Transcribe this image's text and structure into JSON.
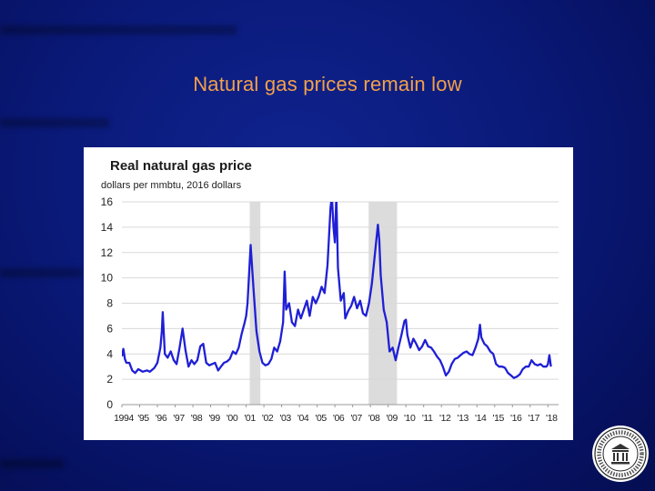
{
  "slide": {
    "title": "Natural gas prices remain low",
    "seal_icon": "fed-reserve-seal-icon"
  },
  "chart_data": {
    "type": "line",
    "title": "Real natural gas price",
    "subtitle": "dollars per mmbtu, 2016 dollars",
    "xlabel": "",
    "ylabel": "",
    "ylim": [
      0,
      16
    ],
    "yticks": [
      0,
      2,
      4,
      6,
      8,
      10,
      12,
      14,
      16
    ],
    "xlim": [
      1994,
      2018.6
    ],
    "xtick_labels": [
      "1994",
      "'95",
      "'96",
      "'97",
      "'98",
      "'99",
      "'00",
      "'01",
      "'02",
      "'03",
      "'04",
      "'05",
      "'06",
      "'07",
      "'08",
      "'09",
      "'10",
      "'11",
      "'12",
      "'13",
      "'14",
      "'15",
      "'16",
      "'17",
      "'18"
    ],
    "xtick_years": [
      1994,
      1995,
      1996,
      1997,
      1998,
      1999,
      2000,
      2001,
      2002,
      2003,
      2004,
      2005,
      2006,
      2007,
      2008,
      2009,
      2010,
      2011,
      2012,
      2013,
      2014,
      2015,
      2016,
      2017,
      2018
    ],
    "grid": true,
    "line_color": "#1f1fd6",
    "shading_color": "#dcdcdc",
    "recessions": [
      [
        2001.2,
        2001.8
      ],
      [
        2007.9,
        2009.5
      ]
    ],
    "series": [
      {
        "name": "Real natural gas price",
        "x": [
          1994.0,
          1994.08,
          1994.17,
          1994.25,
          1994.42,
          1994.58,
          1994.75,
          1994.92,
          1995.17,
          1995.42,
          1995.58,
          1995.83,
          1996.0,
          1996.17,
          1996.25,
          1996.3,
          1996.42,
          1996.58,
          1996.75,
          1996.92,
          1997.08,
          1997.25,
          1997.42,
          1997.58,
          1997.75,
          1997.92,
          1998.08,
          1998.25,
          1998.42,
          1998.58,
          1998.75,
          1998.92,
          1999.08,
          1999.25,
          1999.42,
          1999.58,
          1999.75,
          1999.92,
          2000.08,
          2000.25,
          2000.42,
          2000.58,
          2000.75,
          2000.92,
          2001.0,
          2001.08,
          2001.25,
          2001.42,
          2001.58,
          2001.75,
          2001.92,
          2002.08,
          2002.25,
          2002.42,
          2002.58,
          2002.75,
          2002.92,
          2003.08,
          2003.17,
          2003.25,
          2003.42,
          2003.58,
          2003.75,
          2003.92,
          2004.08,
          2004.25,
          2004.42,
          2004.58,
          2004.75,
          2004.92,
          2005.08,
          2005.25,
          2005.42,
          2005.58,
          2005.75,
          2005.83,
          2005.92,
          2006.0,
          2006.08,
          2006.17,
          2006.33,
          2006.5,
          2006.58,
          2006.75,
          2006.92,
          2007.08,
          2007.25,
          2007.42,
          2007.58,
          2007.75,
          2007.92,
          2008.08,
          2008.25,
          2008.42,
          2008.5,
          2008.58,
          2008.75,
          2008.92,
          2009.08,
          2009.25,
          2009.42,
          2009.58,
          2009.75,
          2009.92,
          2010.0,
          2010.08,
          2010.25,
          2010.42,
          2010.58,
          2010.75,
          2010.92,
          2011.08,
          2011.25,
          2011.42,
          2011.58,
          2011.75,
          2011.92,
          2012.08,
          2012.25,
          2012.42,
          2012.58,
          2012.75,
          2012.92,
          2013.08,
          2013.25,
          2013.42,
          2013.58,
          2013.75,
          2013.92,
          2014.08,
          2014.17,
          2014.25,
          2014.42,
          2014.58,
          2014.75,
          2014.92,
          2015.08,
          2015.25,
          2015.42,
          2015.58,
          2015.75,
          2015.92,
          2016.08,
          2016.25,
          2016.42,
          2016.58,
          2016.75,
          2016.92,
          2017.08,
          2017.25,
          2017.42,
          2017.58,
          2017.75,
          2017.92,
          2018.0,
          2018.08,
          2018.17
        ],
        "values": [
          3.8,
          4.4,
          3.6,
          3.3,
          3.3,
          2.7,
          2.5,
          2.8,
          2.6,
          2.7,
          2.6,
          2.9,
          3.3,
          4.5,
          5.8,
          7.3,
          4.0,
          3.7,
          4.2,
          3.5,
          3.2,
          4.5,
          6.0,
          4.3,
          3.0,
          3.5,
          3.2,
          3.5,
          4.6,
          4.8,
          3.3,
          3.1,
          3.2,
          3.3,
          2.7,
          3.0,
          3.3,
          3.4,
          3.6,
          4.2,
          4.0,
          4.5,
          5.6,
          6.5,
          7.0,
          8.0,
          12.6,
          9.0,
          5.8,
          4.2,
          3.3,
          3.1,
          3.2,
          3.6,
          4.5,
          4.2,
          5.0,
          6.5,
          10.5,
          7.5,
          8.0,
          6.5,
          6.2,
          7.5,
          6.8,
          7.5,
          8.2,
          7.0,
          8.5,
          8.0,
          8.5,
          9.3,
          8.8,
          11.0,
          15.5,
          16.5,
          14.0,
          12.8,
          16.5,
          10.8,
          8.2,
          8.8,
          6.8,
          7.4,
          7.8,
          8.5,
          7.6,
          8.2,
          7.2,
          7.0,
          8.0,
          9.5,
          11.8,
          14.2,
          13.0,
          10.2,
          7.5,
          6.5,
          4.2,
          4.5,
          3.5,
          4.5,
          5.5,
          6.6,
          6.7,
          5.5,
          4.5,
          5.2,
          4.8,
          4.3,
          4.6,
          5.1,
          4.6,
          4.5,
          4.2,
          3.8,
          3.5,
          3.0,
          2.3,
          2.6,
          3.2,
          3.6,
          3.7,
          3.9,
          4.1,
          4.2,
          4.0,
          3.9,
          4.5,
          5.2,
          6.3,
          5.3,
          4.8,
          4.6,
          4.2,
          4.0,
          3.2,
          3.0,
          3.0,
          2.9,
          2.5,
          2.3,
          2.1,
          2.2,
          2.4,
          2.8,
          3.0,
          3.0,
          3.5,
          3.2,
          3.1,
          3.2,
          3.0,
          3.0,
          3.2,
          3.9,
          3.0
        ]
      }
    ]
  }
}
